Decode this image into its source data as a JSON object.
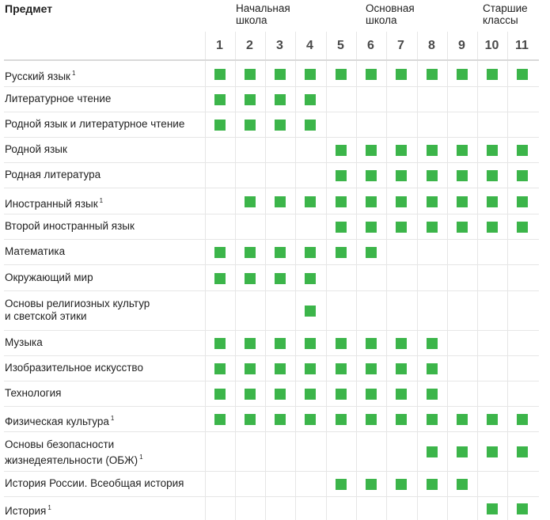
{
  "header": {
    "subject_label": "Предмет",
    "groups": [
      {
        "line1": "Начальная",
        "line2": "школа"
      },
      {
        "line1": "Основная",
        "line2": "школа"
      },
      {
        "line1": "Старшие",
        "line2": "классы"
      }
    ],
    "grades": [
      "1",
      "2",
      "3",
      "4",
      "5",
      "6",
      "7",
      "8",
      "9",
      "10",
      "11"
    ]
  },
  "colors": {
    "mark": "#3cb54a",
    "grid": "#e6e6e6"
  },
  "rows": [
    {
      "lines": [
        "Русский язык"
      ],
      "note": "1",
      "marks": [
        1,
        1,
        1,
        1,
        1,
        1,
        1,
        1,
        1,
        1,
        1
      ]
    },
    {
      "lines": [
        "Литературное чтение"
      ],
      "note": "",
      "marks": [
        1,
        1,
        1,
        1,
        0,
        0,
        0,
        0,
        0,
        0,
        0
      ]
    },
    {
      "lines": [
        "Родной язык и литературное чтение"
      ],
      "note": "",
      "marks": [
        1,
        1,
        1,
        1,
        0,
        0,
        0,
        0,
        0,
        0,
        0
      ]
    },
    {
      "lines": [
        "Родной язык"
      ],
      "note": "",
      "marks": [
        0,
        0,
        0,
        0,
        1,
        1,
        1,
        1,
        1,
        1,
        1
      ]
    },
    {
      "lines": [
        "Родная литература"
      ],
      "note": "",
      "marks": [
        0,
        0,
        0,
        0,
        1,
        1,
        1,
        1,
        1,
        1,
        1
      ]
    },
    {
      "lines": [
        "Иностранный язык"
      ],
      "note": "1",
      "marks": [
        0,
        1,
        1,
        1,
        1,
        1,
        1,
        1,
        1,
        1,
        1
      ]
    },
    {
      "lines": [
        "Второй иностранный язык"
      ],
      "note": "",
      "marks": [
        0,
        0,
        0,
        0,
        1,
        1,
        1,
        1,
        1,
        1,
        1
      ]
    },
    {
      "lines": [
        "Математика"
      ],
      "note": "",
      "marks": [
        1,
        1,
        1,
        1,
        1,
        1,
        0,
        0,
        0,
        0,
        0
      ]
    },
    {
      "lines": [
        "Окружающий мир"
      ],
      "note": "",
      "marks": [
        1,
        1,
        1,
        1,
        0,
        0,
        0,
        0,
        0,
        0,
        0
      ]
    },
    {
      "lines": [
        "Основы религиозных культур",
        "и светской этики"
      ],
      "note": "",
      "marks": [
        0,
        0,
        0,
        1,
        0,
        0,
        0,
        0,
        0,
        0,
        0
      ]
    },
    {
      "lines": [
        "Музыка"
      ],
      "note": "",
      "marks": [
        1,
        1,
        1,
        1,
        1,
        1,
        1,
        1,
        0,
        0,
        0
      ]
    },
    {
      "lines": [
        "Изобразительное искусство"
      ],
      "note": "",
      "marks": [
        1,
        1,
        1,
        1,
        1,
        1,
        1,
        1,
        0,
        0,
        0
      ]
    },
    {
      "lines": [
        "Технология"
      ],
      "note": "",
      "marks": [
        1,
        1,
        1,
        1,
        1,
        1,
        1,
        1,
        0,
        0,
        0
      ]
    },
    {
      "lines": [
        "Физическая культура"
      ],
      "note": "1",
      "marks": [
        1,
        1,
        1,
        1,
        1,
        1,
        1,
        1,
        1,
        1,
        1
      ]
    },
    {
      "lines": [
        "Основы безопасности",
        "жизнедеятельности (ОБЖ)"
      ],
      "note": "1",
      "marks": [
        0,
        0,
        0,
        0,
        0,
        0,
        0,
        1,
        1,
        1,
        1
      ]
    },
    {
      "lines": [
        "История России. Всеобщая история"
      ],
      "note": "",
      "marks": [
        0,
        0,
        0,
        0,
        1,
        1,
        1,
        1,
        1,
        0,
        0
      ]
    },
    {
      "lines": [
        "История"
      ],
      "note": "1",
      "marks": [
        0,
        0,
        0,
        0,
        0,
        0,
        0,
        0,
        0,
        1,
        1
      ]
    }
  ]
}
